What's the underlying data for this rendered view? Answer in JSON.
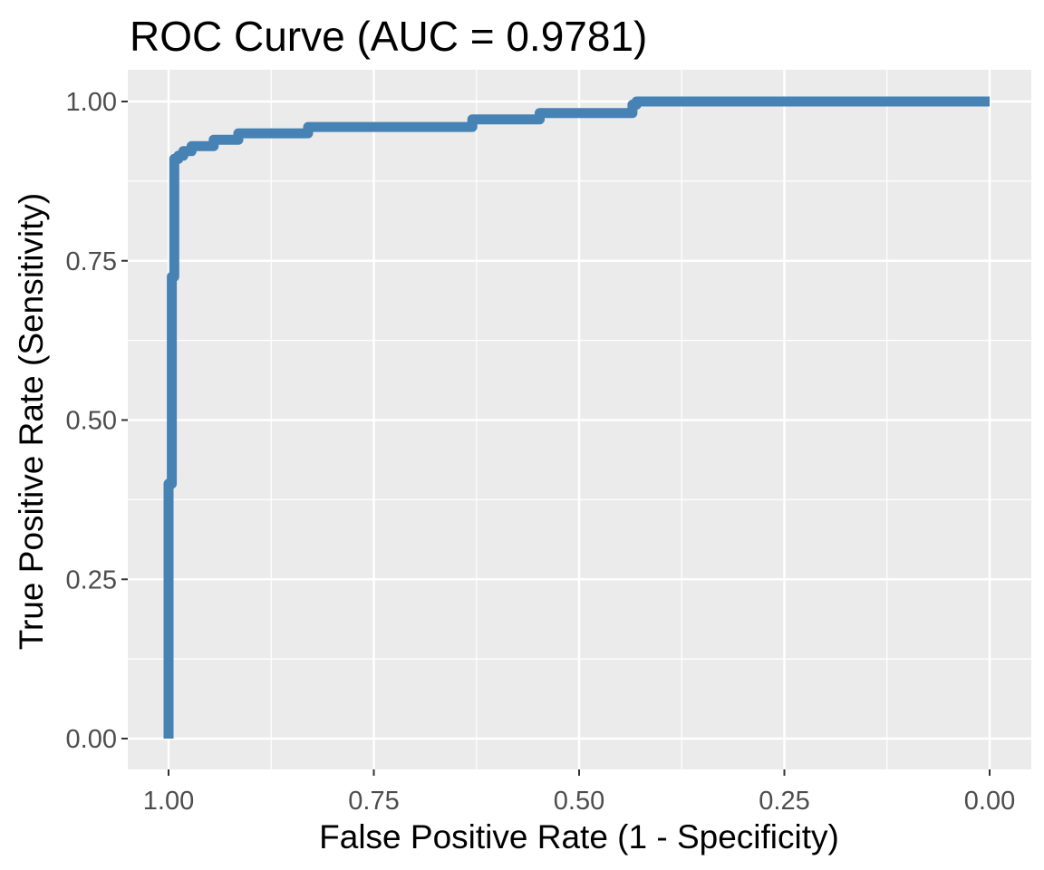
{
  "chart_data": {
    "type": "line",
    "title": "ROC Curve (AUC = 0.9781)",
    "xlabel": "False Positive Rate (1 - Specificity)",
    "ylabel": "True Positive Rate (Sensitivity)",
    "x_axis_reversed": true,
    "xlim": [
      1.0,
      0.0
    ],
    "ylim": [
      0.0,
      1.0
    ],
    "x_ticks": [
      1.0,
      0.75,
      0.5,
      0.25,
      0.0
    ],
    "x_tick_labels": [
      "1.00",
      "0.75",
      "0.50",
      "0.25",
      "0.00"
    ],
    "y_ticks": [
      0.0,
      0.25,
      0.5,
      0.75,
      1.0
    ],
    "y_tick_labels": [
      "0.00",
      "0.25",
      "0.50",
      "0.75",
      "1.00"
    ],
    "grid": true,
    "legend": "none",
    "series": [
      {
        "color": "#4682b4",
        "points": [
          [
            1.0,
            0.0
          ],
          [
            1.0,
            0.4
          ],
          [
            0.996,
            0.4
          ],
          [
            0.996,
            0.725
          ],
          [
            0.993,
            0.725
          ],
          [
            0.993,
            0.91
          ],
          [
            0.988,
            0.91
          ],
          [
            0.988,
            0.915
          ],
          [
            0.982,
            0.915
          ],
          [
            0.982,
            0.922
          ],
          [
            0.972,
            0.922
          ],
          [
            0.972,
            0.93
          ],
          [
            0.945,
            0.93
          ],
          [
            0.945,
            0.94
          ],
          [
            0.915,
            0.94
          ],
          [
            0.915,
            0.95
          ],
          [
            0.83,
            0.95
          ],
          [
            0.83,
            0.96
          ],
          [
            0.63,
            0.96
          ],
          [
            0.63,
            0.972
          ],
          [
            0.548,
            0.972
          ],
          [
            0.548,
            0.982
          ],
          [
            0.435,
            0.982
          ],
          [
            0.435,
            0.995
          ],
          [
            0.43,
            0.995
          ],
          [
            0.43,
            1.0
          ],
          [
            0.0,
            1.0
          ]
        ]
      }
    ]
  }
}
